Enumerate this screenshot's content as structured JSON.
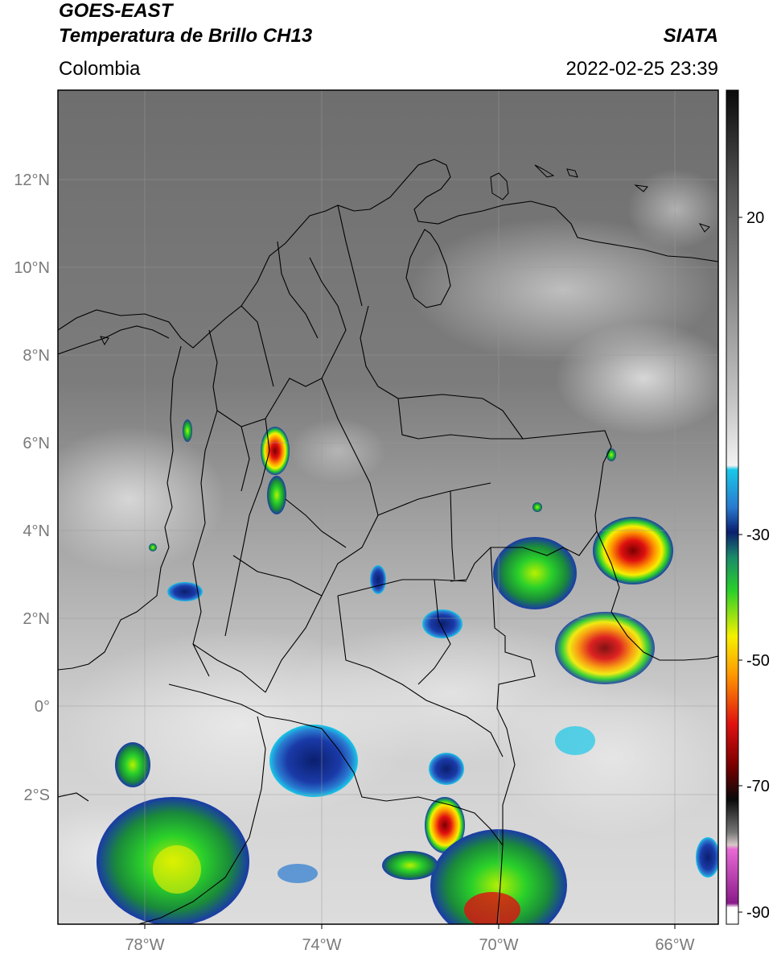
{
  "header": {
    "satellite": "GOES-EAST",
    "product": "Temperatura de Brillo CH13",
    "region": "Colombia",
    "agency": "SIATA",
    "datetime": "2022-02-25 23:39"
  },
  "map": {
    "lon_range": [
      -80,
      -65
    ],
    "lat_range": [
      -5,
      14
    ],
    "lon_ticks": [
      "78°W",
      "74°W",
      "70°W",
      "66°W"
    ],
    "lat_ticks": [
      "12°N",
      "10°N",
      "8°N",
      "6°N",
      "4°N",
      "2°N",
      "0°",
      "2°S"
    ],
    "gridlines": true
  },
  "colorbar": {
    "tick_labels": [
      "20",
      "-30",
      "-50",
      "-70",
      "-90"
    ],
    "colors": {
      "warm_top": "#0a0a0a",
      "warm_mid": "#8c8c8c",
      "warm_low": "#f2f2f2",
      "cyan": "#18c8e8",
      "blue": "#1a3aa8",
      "navy": "#0b1f6e",
      "green": "#2ad02a",
      "yellow": "#f6f000",
      "orange": "#ff9a00",
      "red": "#e01010",
      "darkred": "#7a0000",
      "black": "#0a0a0a",
      "pink": "#e86ad4",
      "purple": "#8a1a8a"
    }
  }
}
